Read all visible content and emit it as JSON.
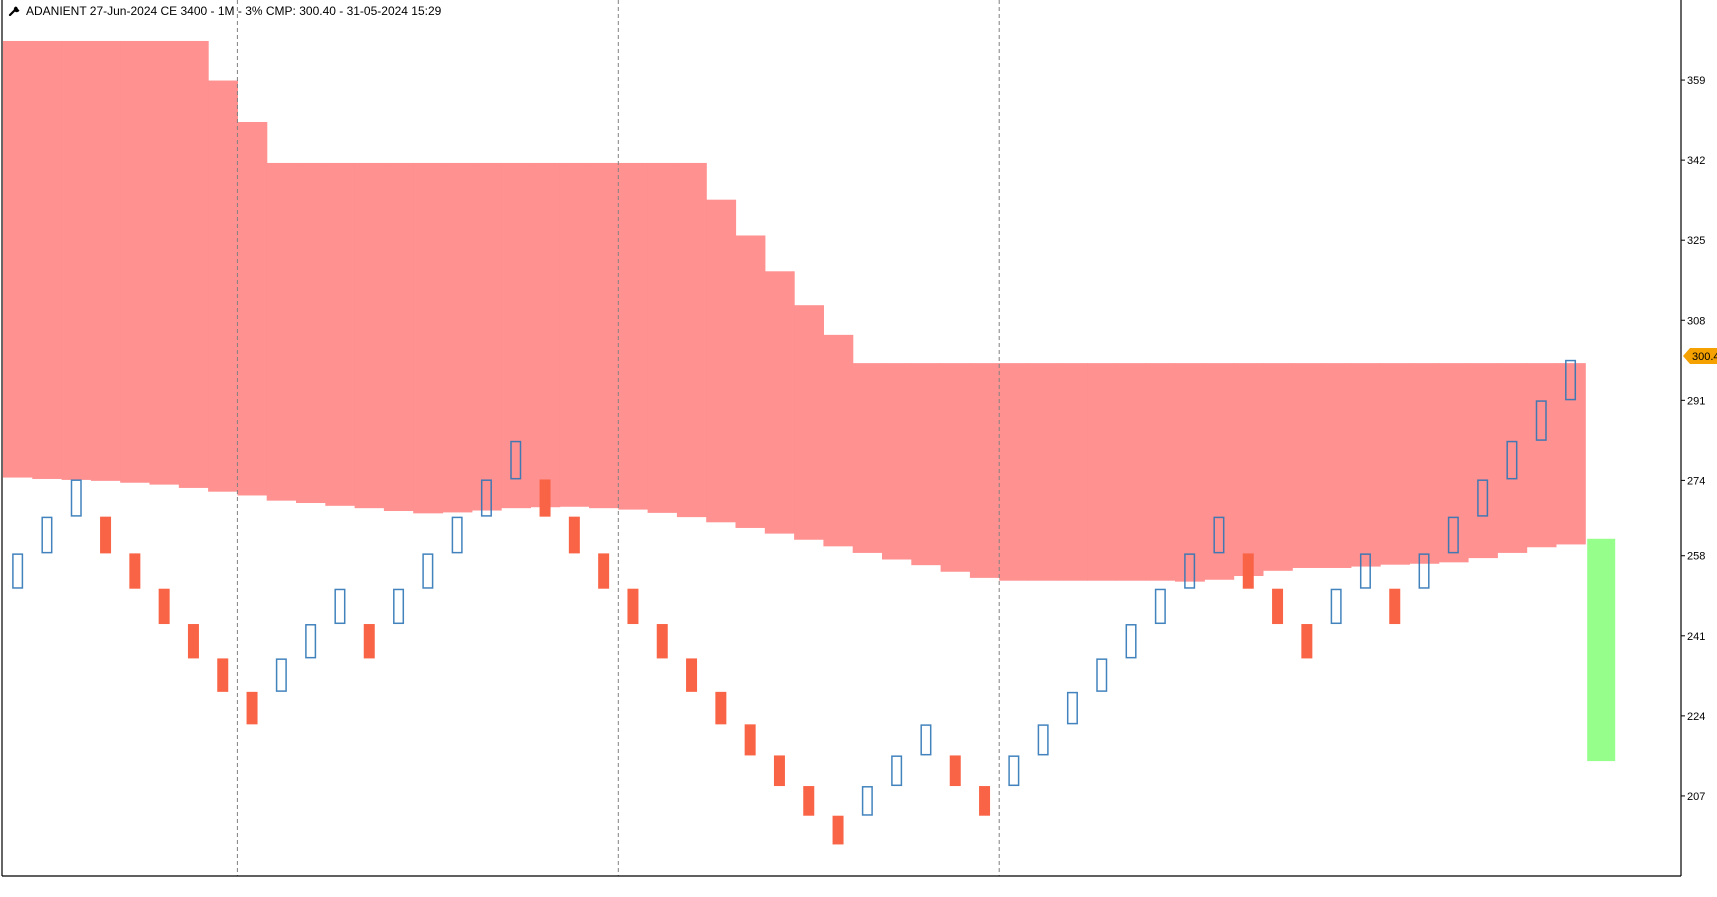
{
  "header": {
    "title": "ADANIENT 27-Jun-2024 CE 3400 - 1M - 3% CMP: 300.40 - 31-05-2024 15:29"
  },
  "colors": {
    "bull_box": "#2e75b6",
    "bear_box": "#fa6446",
    "zone_fill": "#ff9191",
    "volume_bar": "#96ff8c",
    "price_tag": "#f5a100",
    "axis": "#000000",
    "separator": "#808080"
  },
  "chart_data": {
    "type": "renko",
    "symbol": "ADANIENT 27-Jun-2024 CE 3400",
    "timeframe": "1M",
    "box_size": "3%",
    "cmp_label": "300.4",
    "current_price": 300.4,
    "ylim": [
      190,
      376
    ],
    "yticks": [
      "359",
      "342",
      "325",
      "308",
      "291",
      "274",
      "258",
      "241",
      "224",
      "207"
    ],
    "column_separators_after_brick": [
      8,
      21,
      34
    ],
    "bricks": [
      {
        "dir": "up",
        "low": 251.0,
        "high": 258.5
      },
      {
        "dir": "up",
        "low": 258.5,
        "high": 266.3
      },
      {
        "dir": "up",
        "low": 266.3,
        "high": 274.2
      },
      {
        "dir": "down",
        "low": 258.5,
        "high": 266.3
      },
      {
        "dir": "down",
        "low": 251.0,
        "high": 258.5
      },
      {
        "dir": "down",
        "low": 243.5,
        "high": 251.0
      },
      {
        "dir": "down",
        "low": 236.2,
        "high": 243.5
      },
      {
        "dir": "down",
        "low": 229.1,
        "high": 236.2
      },
      {
        "dir": "down",
        "low": 222.2,
        "high": 229.1
      },
      {
        "dir": "up",
        "low": 229.1,
        "high": 236.2
      },
      {
        "dir": "up",
        "low": 236.2,
        "high": 243.5
      },
      {
        "dir": "up",
        "low": 243.5,
        "high": 251.0
      },
      {
        "dir": "down",
        "low": 236.2,
        "high": 243.5
      },
      {
        "dir": "up",
        "low": 243.5,
        "high": 251.0
      },
      {
        "dir": "up",
        "low": 251.0,
        "high": 258.5
      },
      {
        "dir": "up",
        "low": 258.5,
        "high": 266.3
      },
      {
        "dir": "up",
        "low": 266.3,
        "high": 274.2
      },
      {
        "dir": "up",
        "low": 274.2,
        "high": 282.4
      },
      {
        "dir": "down",
        "low": 266.3,
        "high": 274.2
      },
      {
        "dir": "down",
        "low": 258.5,
        "high": 266.3
      },
      {
        "dir": "down",
        "low": 251.0,
        "high": 258.5
      },
      {
        "dir": "down",
        "low": 243.5,
        "high": 251.0
      },
      {
        "dir": "down",
        "low": 236.2,
        "high": 243.5
      },
      {
        "dir": "down",
        "low": 229.1,
        "high": 236.2
      },
      {
        "dir": "down",
        "low": 222.2,
        "high": 229.1
      },
      {
        "dir": "down",
        "low": 215.6,
        "high": 222.2
      },
      {
        "dir": "down",
        "low": 209.1,
        "high": 215.6
      },
      {
        "dir": "down",
        "low": 202.8,
        "high": 209.1
      },
      {
        "dir": "down",
        "low": 196.7,
        "high": 202.8
      },
      {
        "dir": "up",
        "low": 202.8,
        "high": 209.1
      },
      {
        "dir": "up",
        "low": 209.1,
        "high": 215.6
      },
      {
        "dir": "up",
        "low": 215.6,
        "high": 222.2
      },
      {
        "dir": "down",
        "low": 209.1,
        "high": 215.6
      },
      {
        "dir": "down",
        "low": 202.8,
        "high": 209.1
      },
      {
        "dir": "up",
        "low": 209.1,
        "high": 215.6
      },
      {
        "dir": "up",
        "low": 215.6,
        "high": 222.2
      },
      {
        "dir": "up",
        "low": 222.2,
        "high": 229.1
      },
      {
        "dir": "up",
        "low": 229.1,
        "high": 236.2
      },
      {
        "dir": "up",
        "low": 236.2,
        "high": 243.5
      },
      {
        "dir": "up",
        "low": 243.5,
        "high": 251.0
      },
      {
        "dir": "up",
        "low": 251.0,
        "high": 258.5
      },
      {
        "dir": "up",
        "low": 258.5,
        "high": 266.3
      },
      {
        "dir": "down",
        "low": 251.0,
        "high": 258.5
      },
      {
        "dir": "down",
        "low": 243.5,
        "high": 251.0
      },
      {
        "dir": "down",
        "low": 236.2,
        "high": 243.5
      },
      {
        "dir": "up",
        "low": 243.5,
        "high": 251.0
      },
      {
        "dir": "up",
        "low": 251.0,
        "high": 258.5
      },
      {
        "dir": "down",
        "low": 243.5,
        "high": 251.0
      },
      {
        "dir": "up",
        "low": 251.0,
        "high": 258.5
      },
      {
        "dir": "up",
        "low": 258.5,
        "high": 266.3
      },
      {
        "dir": "up",
        "low": 266.3,
        "high": 274.2
      },
      {
        "dir": "up",
        "low": 274.2,
        "high": 282.4
      },
      {
        "dir": "up",
        "low": 282.4,
        "high": 291.0
      },
      {
        "dir": "up",
        "low": 291.0,
        "high": 299.6
      }
    ],
    "zone_upper": [
      367.3,
      367.3,
      367.3,
      367.3,
      367.3,
      367.3,
      367.3,
      358.9,
      350.1,
      341.4,
      341.4,
      341.4,
      341.4,
      341.4,
      341.4,
      341.4,
      341.4,
      341.4,
      341.4,
      341.4,
      341.4,
      341.4,
      341.4,
      341.4,
      333.6,
      326.0,
      318.4,
      311.2,
      304.9,
      298.9,
      298.9,
      298.9,
      298.9,
      298.9,
      298.9,
      298.9,
      298.9,
      298.9,
      298.9,
      298.9,
      298.9,
      298.9,
      298.9,
      298.9,
      298.9,
      298.9,
      298.9,
      298.9,
      298.9,
      298.9,
      298.9,
      298.9,
      298.9,
      298.9
    ],
    "zone_lower": [
      274.6,
      274.3,
      274.1,
      273.9,
      273.5,
      273.1,
      272.4,
      271.6,
      270.8,
      269.7,
      269.2,
      268.6,
      268.1,
      267.5,
      267.0,
      267.2,
      267.6,
      268.1,
      268.3,
      268.4,
      268.1,
      267.8,
      267.1,
      266.2,
      265.1,
      263.9,
      262.7,
      261.4,
      260.0,
      258.6,
      257.2,
      256.0,
      254.6,
      253.3,
      252.7,
      252.7,
      252.7,
      252.7,
      252.7,
      252.7,
      252.5,
      252.9,
      253.7,
      254.8,
      255.4,
      255.4,
      255.7,
      256.1,
      256.3,
      256.6,
      257.5,
      258.6,
      259.8,
      260.4
    ],
    "volume_bar": {
      "high": 261.6,
      "low": 214.4
    }
  }
}
